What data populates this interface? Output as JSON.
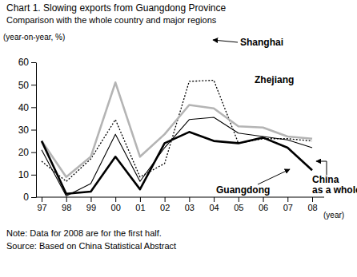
{
  "chart_data": {
    "type": "line",
    "title": "Chart 1. Slowing exports from Guangdong Province",
    "subtitle": "Comparison with the whole country and major regions",
    "y_label": "(year-on-year, %)",
    "x_label": "(year)",
    "note": "Note: Data for 2008 are for the first half.",
    "source": "Source: Based on China Statistical Abstract",
    "categories": [
      "97",
      "98",
      "99",
      "00",
      "01",
      "02",
      "03",
      "04",
      "05",
      "06",
      "07",
      "08"
    ],
    "series": [
      {
        "name": "Shanghai",
        "color": "#000000",
        "line_style": "dotted",
        "values": [
          16,
          7,
          17,
          34.5,
          9,
          15,
          51.5,
          52,
          24,
          26,
          26,
          25
        ]
      },
      {
        "name": "Zhejiang",
        "color": "#b4b4b4",
        "line_style": "solid",
        "values": [
          25,
          9,
          18,
          51,
          18,
          28,
          41,
          39.5,
          31.5,
          31,
          27,
          26
        ]
      },
      {
        "name": "Guangdong",
        "color": "#000000",
        "line_style": "solid",
        "values": [
          25,
          1.5,
          2.5,
          18,
          3.5,
          24,
          29,
          25,
          24,
          26.5,
          22,
          12
        ]
      },
      {
        "name": "China as a whole",
        "color": "#000000",
        "line_style": "solid",
        "values": [
          21,
          0.5,
          6,
          28,
          7,
          22,
          34.5,
          35.5,
          28.5,
          27,
          25.5,
          22
        ]
      }
    ],
    "ylim": [
      0,
      60
    ],
    "yticks": [
      0,
      10,
      20,
      30,
      40,
      50,
      60
    ],
    "grid": false
  }
}
